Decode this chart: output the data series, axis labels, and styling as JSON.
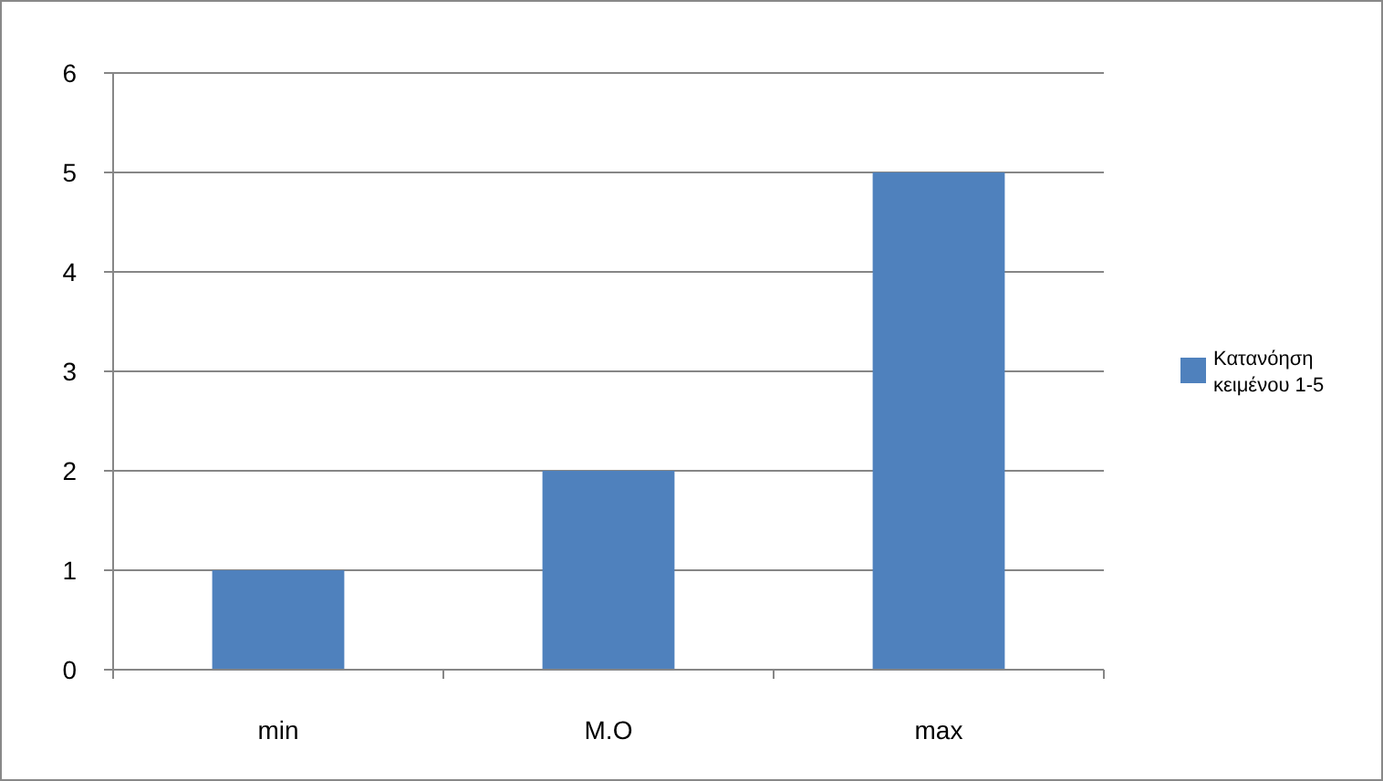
{
  "chart_data": {
    "type": "bar",
    "categories": [
      "min",
      "M.O",
      "max"
    ],
    "series": [
      {
        "name": "Κατανόηση κειμένου 1-5",
        "color": "#4f81bd",
        "values": [
          1,
          2,
          5
        ]
      }
    ],
    "ylim": [
      0,
      6
    ],
    "yticks": [
      0,
      1,
      2,
      3,
      4,
      5,
      6
    ],
    "grid": "y",
    "legend": "right"
  }
}
